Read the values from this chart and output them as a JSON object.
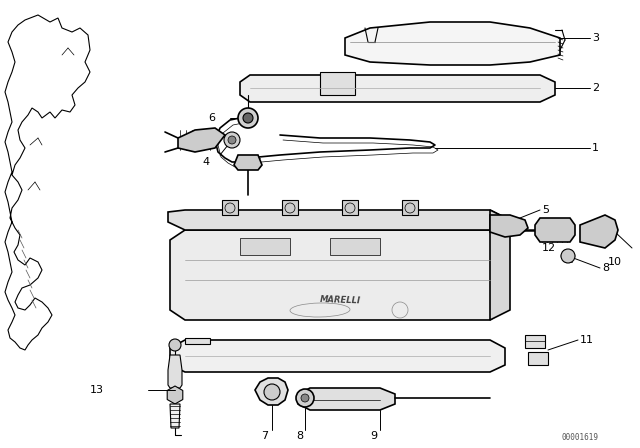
{
  "background_color": "#ffffff",
  "line_color": "#000000",
  "watermark": "00001619",
  "fig_width": 6.4,
  "fig_height": 4.48,
  "dpi": 100
}
